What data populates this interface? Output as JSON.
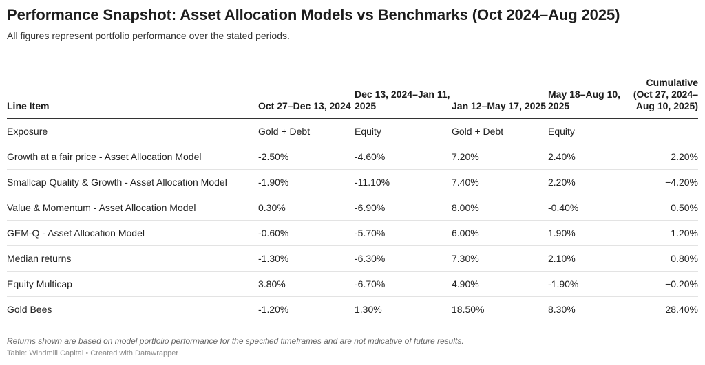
{
  "title": "Performance Snapshot: Asset Allocation Models vs Benchmarks (Oct 2024–Aug 2025)",
  "subtitle": "All figures represent portfolio performance over the stated periods.",
  "chart_data": {
    "type": "table",
    "columns": [
      "Line Item",
      "Oct 27–Dec 13, 2024",
      "Dec 13, 2024–Jan 11, 2025",
      "Jan 12–May 17, 2025",
      "May 18–Aug 10, 2025",
      "Cumulative (Oct 27, 2024–Aug 10, 2025)"
    ],
    "rows": [
      [
        "Exposure",
        "Gold + Debt",
        "Equity",
        "Gold + Debt",
        "Equity",
        ""
      ],
      [
        "Growth at a fair price - Asset Allocation Model",
        "-2.50%",
        "-4.60%",
        "7.20%",
        "2.40%",
        "2.20%"
      ],
      [
        "Smallcap Quality & Growth - Asset Allocation Model",
        "-1.90%",
        "-11.10%",
        "7.40%",
        "2.20%",
        "−4.20%"
      ],
      [
        "Value & Momentum - Asset Allocation Model",
        "0.30%",
        "-6.90%",
        "8.00%",
        "-0.40%",
        "0.50%"
      ],
      [
        "GEM-Q - Asset Allocation Model",
        "-0.60%",
        "-5.70%",
        "6.00%",
        "1.90%",
        "1.20%"
      ],
      [
        "Median returns",
        "-1.30%",
        "-6.30%",
        "7.30%",
        "2.10%",
        "0.80%"
      ],
      [
        "Equity Multicap",
        "3.80%",
        "-6.70%",
        "4.90%",
        "-1.90%",
        "−0.20%"
      ],
      [
        "Gold Bees",
        "-1.20%",
        "1.30%",
        "18.50%",
        "8.30%",
        "28.40%"
      ]
    ]
  },
  "footer": {
    "note": "Returns shown are based on model portfolio performance for the specified timeframes and are not indicative of future results.",
    "source": "Table: Windmill Capital • Created with Datawrapper"
  }
}
